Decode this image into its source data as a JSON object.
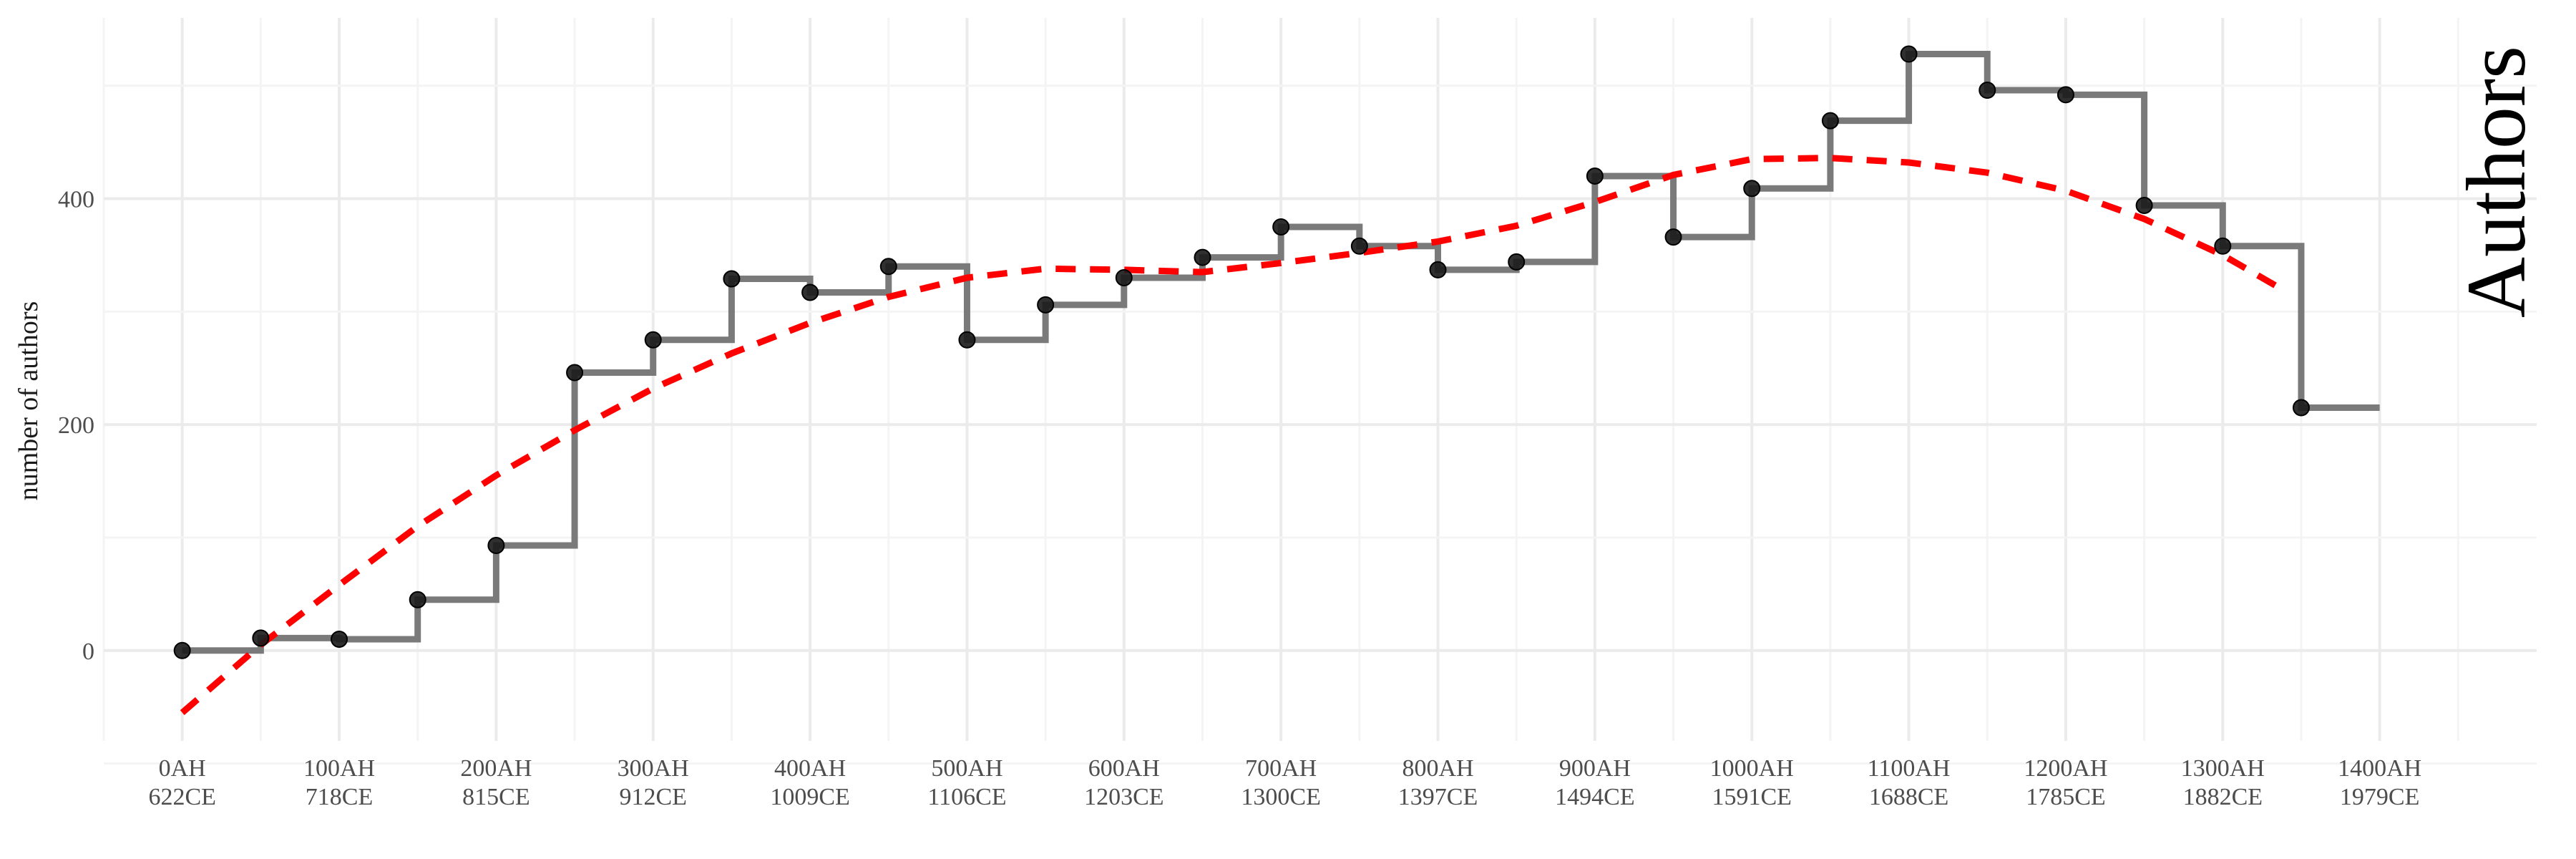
{
  "chart_data": {
    "type": "line",
    "title": "Authors",
    "xlabel": "",
    "ylabel": "number of authors",
    "xlim": [
      -50,
      1500
    ],
    "ylim": [
      -80,
      560
    ],
    "grid": true,
    "x_ticks": [
      {
        "value": 0,
        "label1": "0AH",
        "label2": "622CE"
      },
      {
        "value": 100,
        "label1": "100AH",
        "label2": "718CE"
      },
      {
        "value": 200,
        "label1": "200AH",
        "label2": "815CE"
      },
      {
        "value": 300,
        "label1": "300AH",
        "label2": "912CE"
      },
      {
        "value": 400,
        "label1": "400AH",
        "label2": "1009CE"
      },
      {
        "value": 500,
        "label1": "500AH",
        "label2": "1106CE"
      },
      {
        "value": 600,
        "label1": "600AH",
        "label2": "1203CE"
      },
      {
        "value": 700,
        "label1": "700AH",
        "label2": "1300CE"
      },
      {
        "value": 800,
        "label1": "800AH",
        "label2": "1397CE"
      },
      {
        "value": 900,
        "label1": "900AH",
        "label2": "1494CE"
      },
      {
        "value": 1000,
        "label1": "1000AH",
        "label2": "1591CE"
      },
      {
        "value": 1100,
        "label1": "1100AH",
        "label2": "1688CE"
      },
      {
        "value": 1200,
        "label1": "1200AH",
        "label2": "1785CE"
      },
      {
        "value": 1300,
        "label1": "1300AH",
        "label2": "1882CE"
      },
      {
        "value": 1400,
        "label1": "1400AH",
        "label2": "1979CE"
      }
    ],
    "y_ticks": [
      0,
      200,
      400
    ],
    "series": [
      {
        "type": "step",
        "color": "#7a7a7a",
        "x": [
          0,
          50,
          100,
          150,
          200,
          250,
          300,
          350,
          400,
          450,
          500,
          550,
          600,
          650,
          700,
          750,
          800,
          850,
          900,
          950,
          1000,
          1050,
          1100,
          1150,
          1200,
          1250,
          1300,
          1350
        ],
        "y": [
          0,
          11,
          10,
          45,
          93,
          246,
          275,
          329,
          317,
          340,
          275,
          306,
          330,
          348,
          375,
          358,
          337,
          344,
          420,
          366,
          409,
          469,
          528,
          496,
          492,
          394,
          358,
          215
        ]
      },
      {
        "type": "points",
        "color": "#1a1a1a",
        "x": [
          0,
          50,
          100,
          150,
          200,
          250,
          300,
          350,
          400,
          450,
          500,
          550,
          600,
          650,
          700,
          750,
          800,
          850,
          900,
          950,
          1000,
          1050,
          1100,
          1150,
          1200,
          1250,
          1300,
          1350
        ],
        "y": [
          0,
          11,
          10,
          45,
          93,
          246,
          275,
          329,
          317,
          340,
          275,
          306,
          330,
          348,
          375,
          358,
          337,
          344,
          420,
          366,
          409,
          469,
          528,
          496,
          492,
          394,
          358,
          215
        ]
      },
      {
        "type": "trend",
        "color": "#ff0000",
        "x": [
          0,
          50,
          100,
          150,
          200,
          250,
          300,
          350,
          400,
          450,
          500,
          550,
          600,
          650,
          700,
          750,
          800,
          850,
          900,
          950,
          1000,
          1050,
          1100,
          1150,
          1200,
          1250,
          1300,
          1335
        ],
        "y": [
          -55,
          5,
          58,
          110,
          155,
          195,
          232,
          263,
          290,
          313,
          330,
          338,
          337,
          335,
          343,
          352,
          362,
          376,
          397,
          421,
          435,
          436,
          432,
          423,
          407,
          382,
          350,
          322
        ]
      }
    ]
  }
}
